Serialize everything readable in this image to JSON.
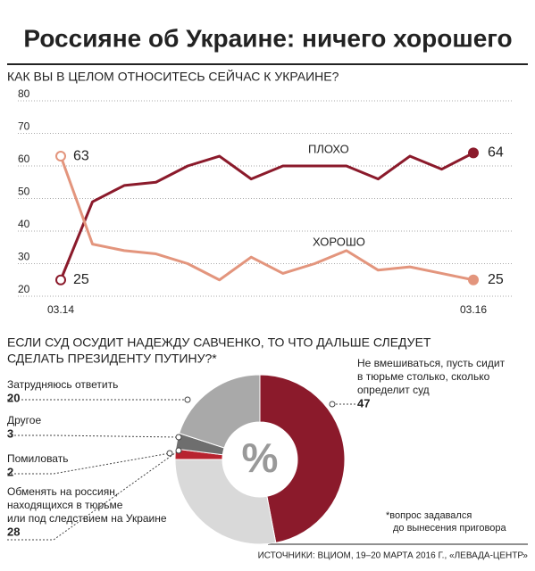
{
  "title": "Россияне об Украине: ничего хорошего",
  "source": "ИСТОЧНИКИ: ВЦИОМ, 19–20 МАРТА 2016 Г., «ЛЕВАДА-ЦЕНТР»",
  "chart_data": [
    {
      "type": "line",
      "title": "КАК ВЫ В ЦЕЛОМ ОТНОСИТЕСЬ СЕЙЧАС К УКРАИНЕ?",
      "categories": [
        "03.14",
        null,
        null,
        null,
        null,
        null,
        null,
        null,
        null,
        null,
        null,
        null,
        null,
        "03.16"
      ],
      "series": [
        {
          "name": "ПЛОХО",
          "color": "#8b1a2b",
          "values": [
            25,
            49,
            54,
            55,
            60,
            63,
            56,
            60,
            60,
            60,
            56,
            63,
            59,
            64
          ]
        },
        {
          "name": "ХОРОШО",
          "color": "#e3957d",
          "values": [
            63,
            36,
            34,
            33,
            30,
            25,
            32,
            27,
            30,
            34,
            28,
            29,
            27,
            25
          ]
        }
      ],
      "ylim": [
        20,
        80
      ],
      "yticks": [
        20,
        30,
        40,
        50,
        60,
        70,
        80
      ],
      "grid": true
    },
    {
      "type": "donut",
      "title": [
        "ЕСЛИ СУД ОСУДИТ НАДЕЖДУ САВЧЕНКО, ТО ЧТО ДАЛЬШЕ СЛЕДУЕТ",
        "СДЕЛАТЬ ПРЕЗИДЕНТУ ПУТИНУ?*"
      ],
      "categories": [
        [
          "Не вмешиваться, пусть сидит",
          "в тюрьме столько, сколько",
          "определит суд"
        ],
        [
          "Обменять на россиян,",
          "находящихся в тюрьме",
          "или под следствием на Украине"
        ],
        [
          "Помиловать"
        ],
        [
          "Другое"
        ],
        [
          "Затрудняюсь ответить"
        ]
      ],
      "values": [
        47,
        28,
        2,
        3,
        20
      ],
      "colors": [
        "#8b1a2b",
        "#d9d9d9",
        "#b8232f",
        "#6e6e6e",
        "#a9a9a9"
      ],
      "center_label": "%",
      "note": [
        "*вопрос задавался",
        "до вынесения приговора"
      ]
    }
  ]
}
